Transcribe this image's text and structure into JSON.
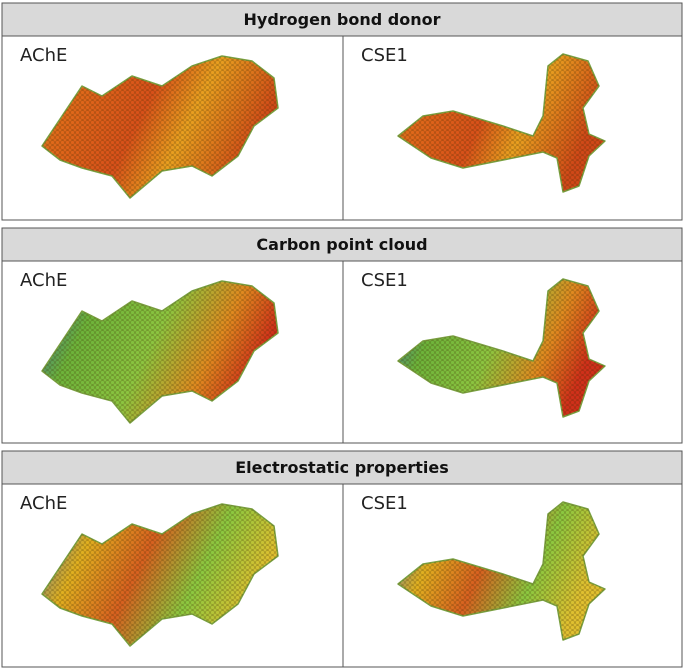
{
  "panels": [
    {
      "title": "Hydrogen bond donor",
      "labels": [
        "AChE",
        "CSE1"
      ]
    },
    {
      "title": "Carbon point cloud",
      "labels": [
        "AChE",
        "CSE1"
      ]
    },
    {
      "title": "Electrostatic properties",
      "labels": [
        "AChE",
        "CSE1"
      ]
    }
  ]
}
